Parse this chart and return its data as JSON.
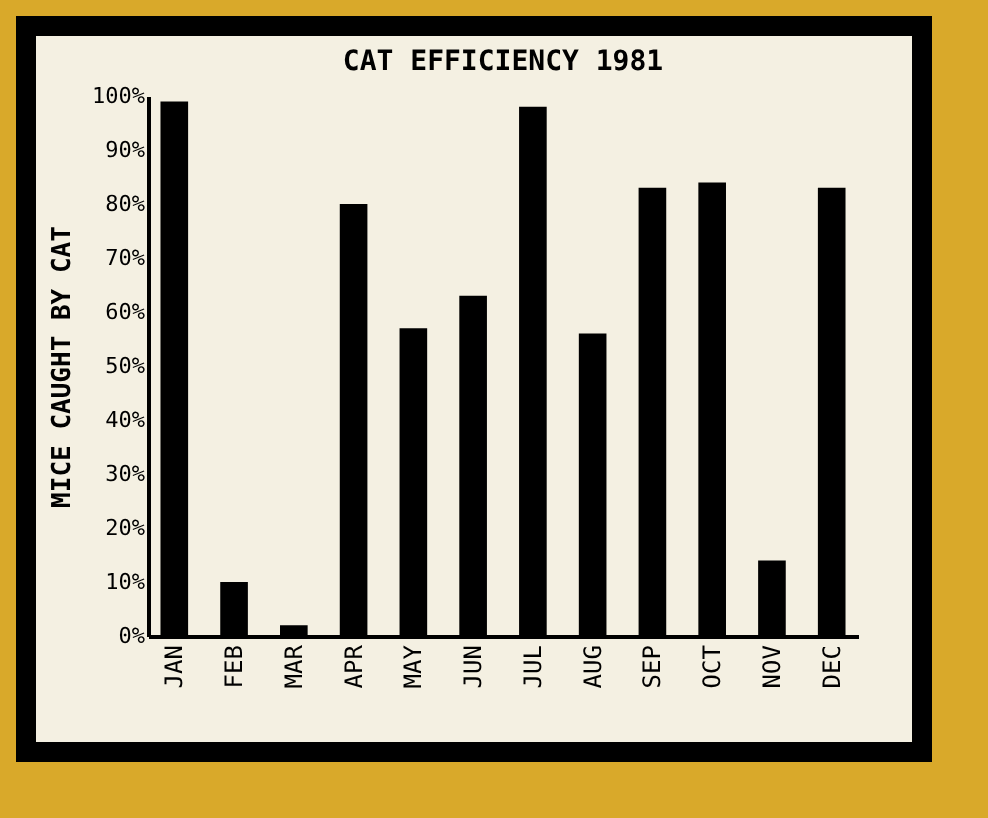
{
  "chart_data": {
    "type": "bar",
    "title": "CAT EFFICIENCY 1981",
    "ylabel": "MICE CAUGHT BY CAT",
    "categories": [
      "JAN",
      "FEB",
      "MAR",
      "APR",
      "MAY",
      "JUN",
      "JUL",
      "AUG",
      "SEP",
      "OCT",
      "NOV",
      "DEC"
    ],
    "values": [
      99,
      10,
      2,
      80,
      57,
      63,
      98,
      56,
      83,
      84,
      14,
      83
    ],
    "color": "#000000",
    "ylim": [
      0,
      100
    ],
    "yticks": [
      {
        "value": 0,
        "label": "0%"
      },
      {
        "value": 10,
        "label": "10%"
      },
      {
        "value": 20,
        "label": "20%"
      },
      {
        "value": 30,
        "label": "30%"
      },
      {
        "value": 40,
        "label": "40%"
      },
      {
        "value": 50,
        "label": "50%"
      },
      {
        "value": 60,
        "label": "60%"
      },
      {
        "value": 70,
        "label": "70%"
      },
      {
        "value": 80,
        "label": "80%"
      },
      {
        "value": 90,
        "label": "90%"
      },
      {
        "value": 100,
        "label": "100%"
      }
    ],
    "grid": false
  }
}
